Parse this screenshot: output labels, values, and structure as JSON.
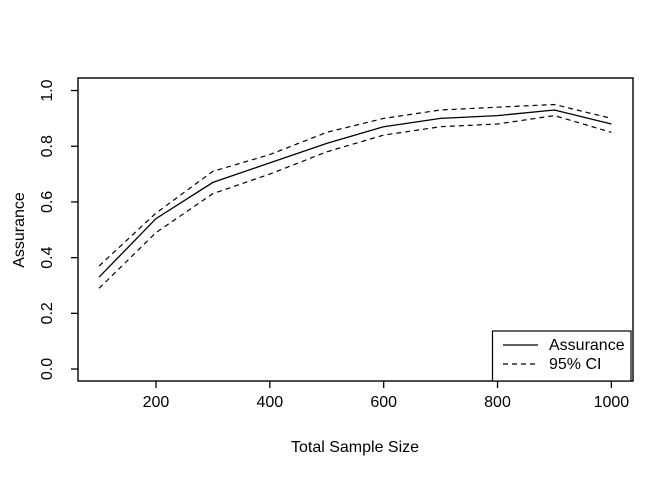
{
  "window": {
    "background": "#ffffff",
    "foreground": "#000000"
  },
  "chart_data": {
    "type": "line",
    "title": "",
    "xlabel": "Total Sample Size",
    "ylabel": "Assurance",
    "x": [
      100,
      200,
      300,
      400,
      500,
      600,
      700,
      800,
      900,
      1000
    ],
    "series": [
      {
        "name": "Assurance",
        "style": "solid",
        "color": "#000000",
        "values": [
          0.33,
          0.54,
          0.67,
          0.74,
          0.81,
          0.87,
          0.9,
          0.91,
          0.93,
          0.88
        ]
      },
      {
        "name": "95% CI upper",
        "style": "dashed",
        "color": "#000000",
        "values": [
          0.37,
          0.56,
          0.71,
          0.77,
          0.85,
          0.9,
          0.93,
          0.94,
          0.95,
          0.9
        ]
      },
      {
        "name": "95% CI lower",
        "style": "dashed",
        "color": "#000000",
        "values": [
          0.29,
          0.49,
          0.63,
          0.7,
          0.78,
          0.84,
          0.87,
          0.88,
          0.91,
          0.85
        ]
      }
    ],
    "x_ticks": {
      "values": [
        200,
        400,
        600,
        800,
        1000
      ],
      "labels": [
        "200",
        "400",
        "600",
        "800",
        "1000"
      ]
    },
    "y_ticks": {
      "values": [
        0.0,
        0.2,
        0.4,
        0.6,
        0.8,
        1.0
      ],
      "labels": [
        "0.0",
        "0.2",
        "0.4",
        "0.6",
        "0.8",
        "1.0"
      ]
    },
    "xlim": [
      63,
      1038
    ],
    "ylim": [
      -0.043,
      1.045
    ],
    "grid": false,
    "legend": {
      "position": "bottom-right",
      "entries": [
        {
          "label": "Assurance",
          "line": "solid"
        },
        {
          "label": "95% CI",
          "line": "dashed"
        }
      ]
    }
  }
}
